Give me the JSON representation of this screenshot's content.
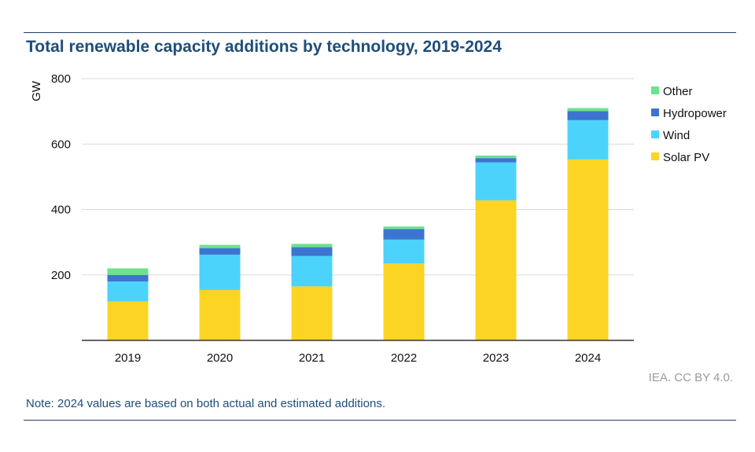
{
  "colors": {
    "Solar PV": "#fcd423",
    "Wind": "#4cd3fb",
    "Hydropower": "#3d74cf",
    "Other": "#6de28c"
  },
  "chart_data": {
    "type": "bar",
    "stacked": true,
    "title": "Total renewable capacity additions by technology, 2019-2024",
    "xlabel": "",
    "ylabel": "GW",
    "ylim": [
      0,
      800
    ],
    "yticks": [
      200,
      400,
      600,
      800
    ],
    "grid": true,
    "legend_position": "right",
    "categories": [
      "2019",
      "2020",
      "2021",
      "2022",
      "2023",
      "2024"
    ],
    "series": [
      {
        "name": "Solar PV",
        "values": [
          119,
          154,
          165,
          235,
          428,
          553
        ]
      },
      {
        "name": "Wind",
        "values": [
          61,
          108,
          93,
          73,
          116,
          120
        ]
      },
      {
        "name": "Hydropower",
        "values": [
          20,
          20,
          27,
          32,
          13,
          28
        ]
      },
      {
        "name": "Other",
        "values": [
          20,
          10,
          10,
          8,
          8,
          9
        ]
      }
    ],
    "legend_order": [
      "Other",
      "Hydropower",
      "Wind",
      "Solar PV"
    ]
  },
  "note": "Note: 2024 values are based on both actual and estimated additions.",
  "credit": "IEA. CC BY 4.0."
}
